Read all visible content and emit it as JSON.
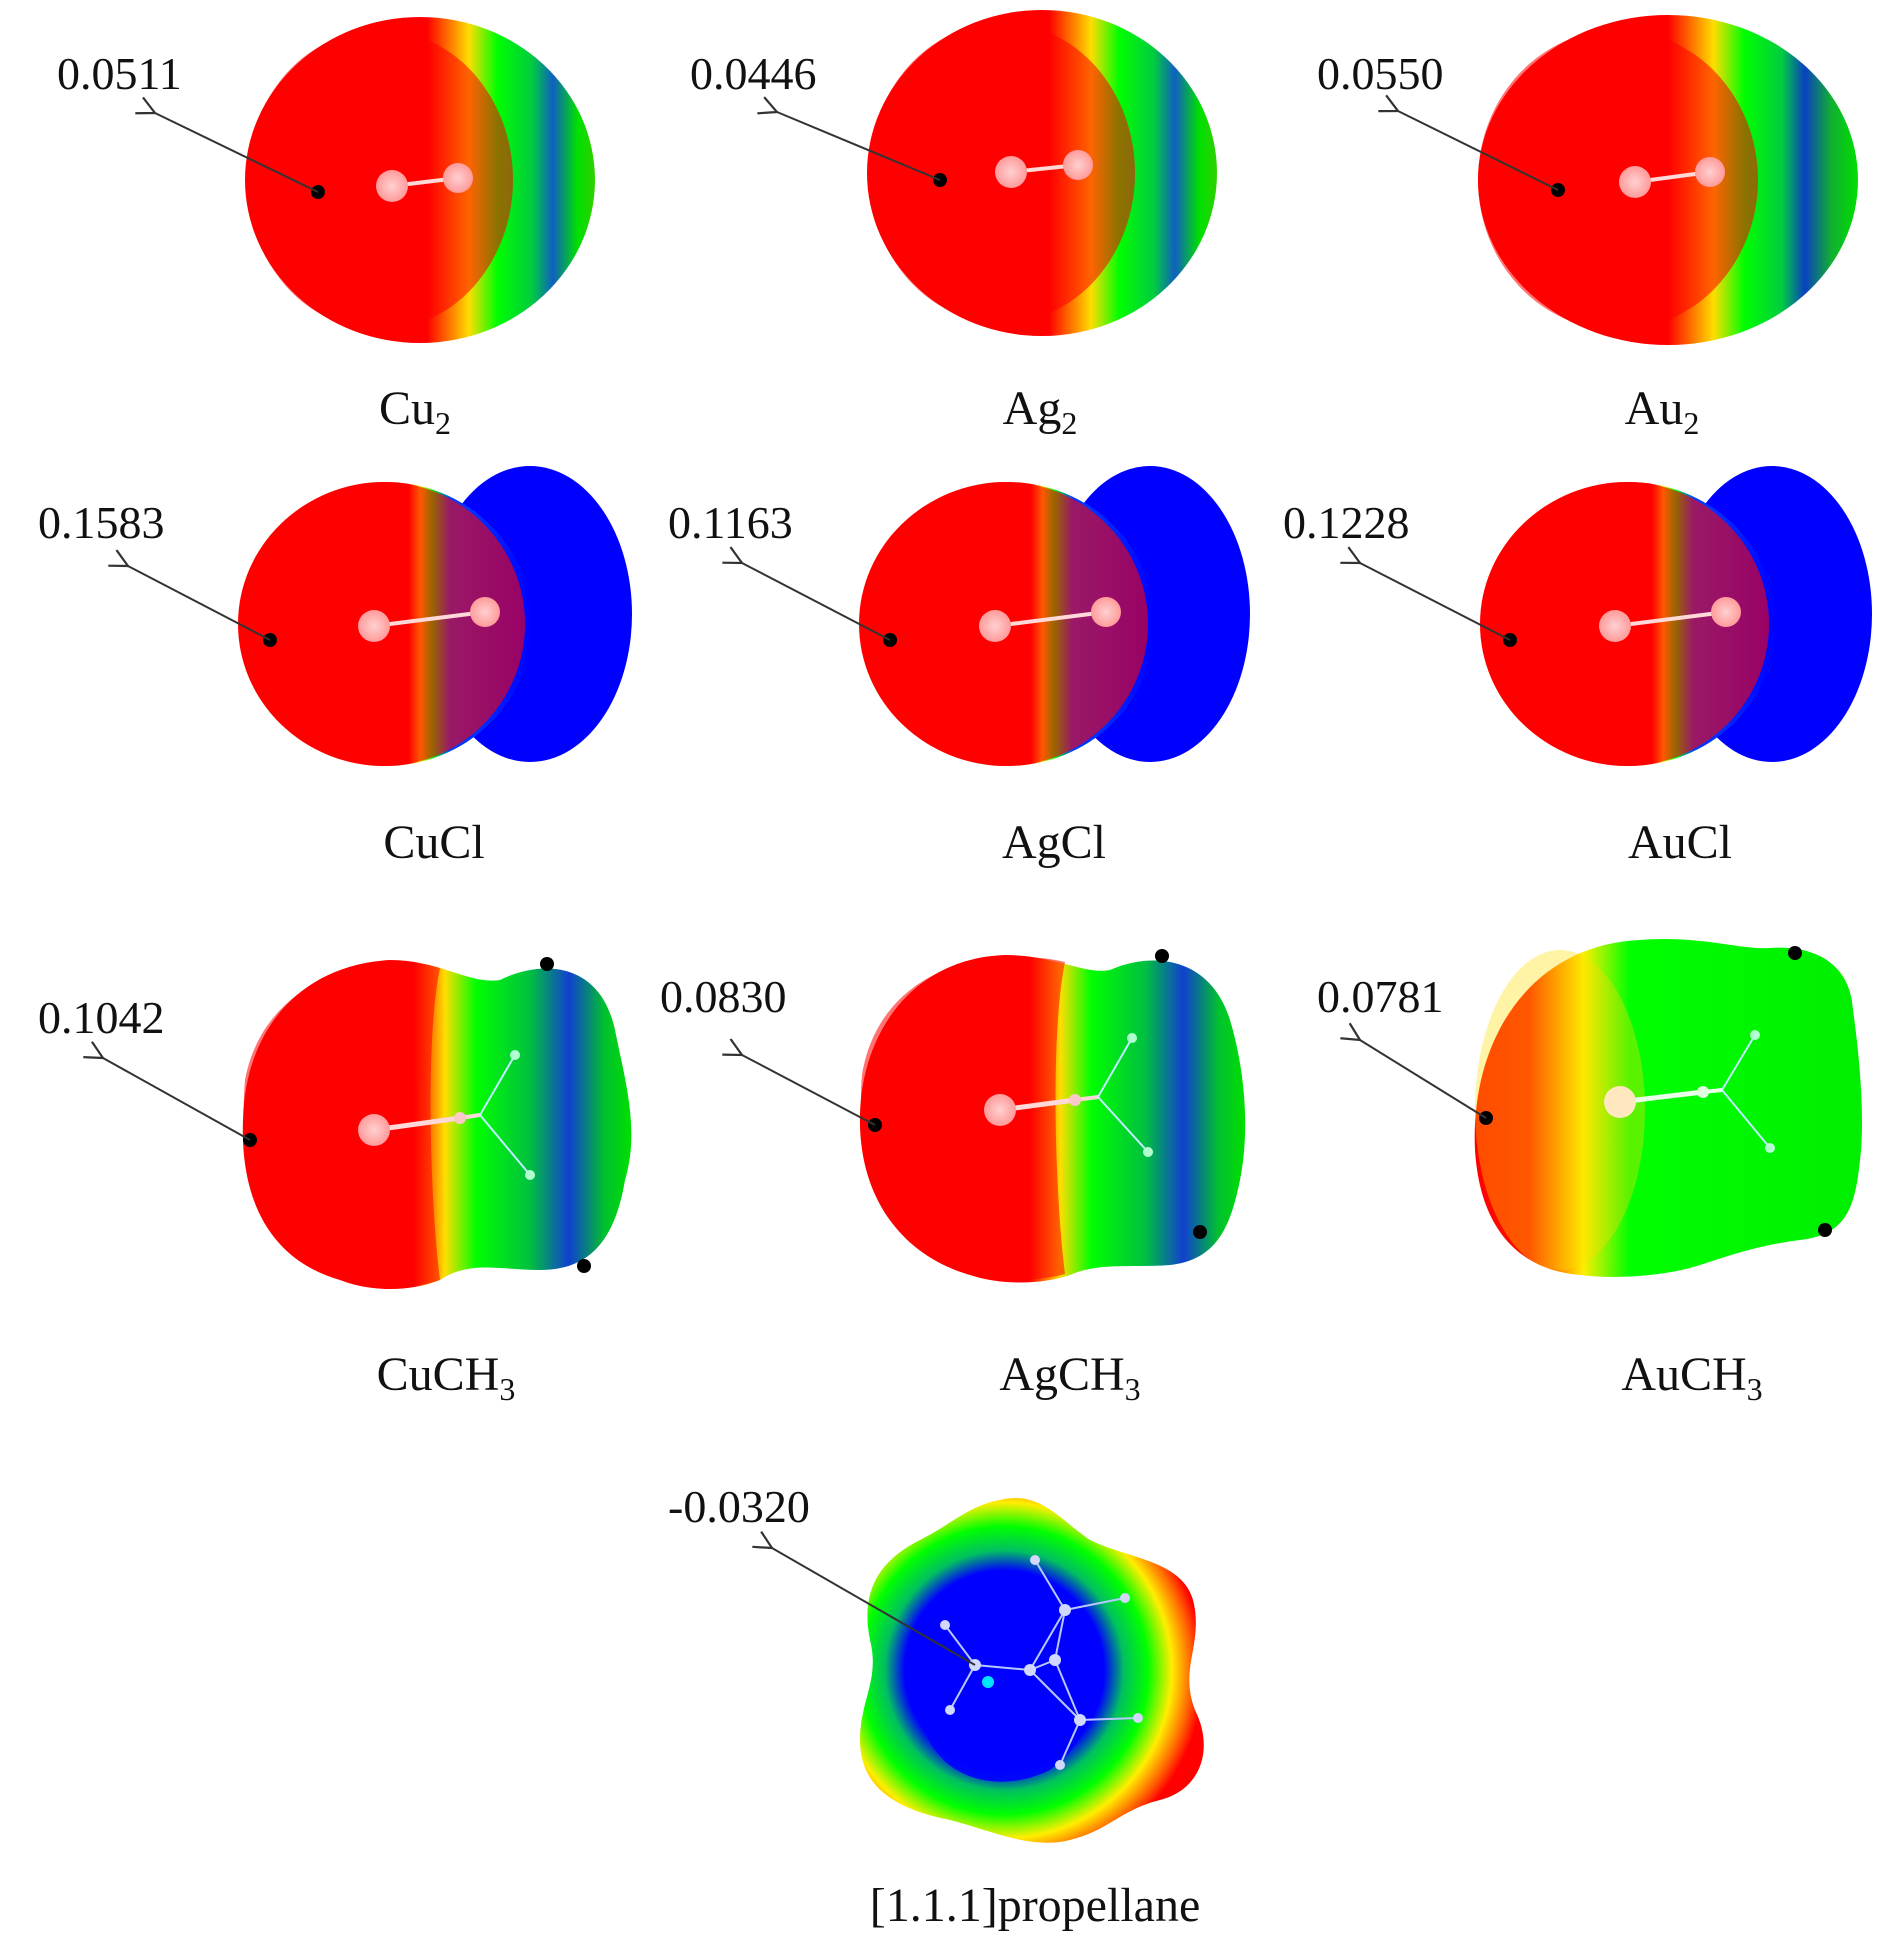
{
  "figure": {
    "panels": [
      {
        "id": "cu2",
        "molecule": "Cu",
        "subscript": "2",
        "value": "0.0511"
      },
      {
        "id": "ag2",
        "molecule": "Ag",
        "subscript": "2",
        "value": "0.0446"
      },
      {
        "id": "au2",
        "molecule": "Au",
        "subscript": "2",
        "value": "0.0550"
      },
      {
        "id": "cucl",
        "molecule": "CuCl",
        "subscript": "",
        "value": "0.1583"
      },
      {
        "id": "agcl",
        "molecule": "AgCl",
        "subscript": "",
        "value": "0.1163"
      },
      {
        "id": "aucl",
        "molecule": "AuCl",
        "subscript": "",
        "value": "0.1228"
      },
      {
        "id": "cuch3",
        "molecule": "CuCH",
        "subscript": "3",
        "value": "0.1042"
      },
      {
        "id": "agch3",
        "molecule": "AgCH",
        "subscript": "3",
        "value": "0.0830"
      },
      {
        "id": "auch3",
        "molecule": "AuCH",
        "subscript": "3",
        "value": "0.0781"
      },
      {
        "id": "propellane",
        "molecule": "[1.1.1]propellane",
        "subscript": "",
        "value": "-0.0320"
      }
    ],
    "colors": {
      "red": "#ff0000",
      "yellow": "#ffff00",
      "green": "#00ff00",
      "blue": "#0000ff",
      "atom": "#ffb0b0",
      "cyan_point": "#00e5ff"
    }
  }
}
